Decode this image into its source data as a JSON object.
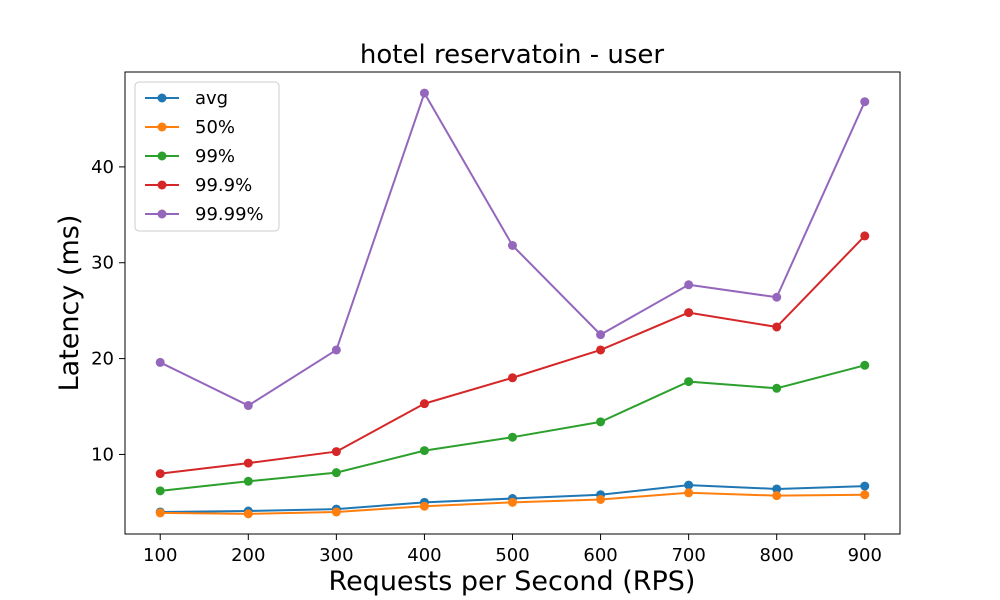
{
  "chart_data": {
    "type": "line",
    "title": "hotel reservatoin - user",
    "xlabel": "Requests per Second (RPS)",
    "ylabel": "Latency (ms)",
    "x": [
      100,
      200,
      300,
      400,
      500,
      600,
      700,
      800,
      900
    ],
    "xticks": [
      "100",
      "200",
      "300",
      "400",
      "500",
      "600",
      "700",
      "800",
      "900"
    ],
    "yticks": [
      10,
      20,
      30,
      40
    ],
    "xlim": [
      60,
      940
    ],
    "ylim": [
      1.7,
      49.9
    ],
    "grid": false,
    "legend_position": "upper-left",
    "series": [
      {
        "name": "avg",
        "color": "#1f77b4",
        "values": [
          4.0,
          4.1,
          4.3,
          5.0,
          5.4,
          5.8,
          6.8,
          6.4,
          6.7
        ]
      },
      {
        "name": "50%",
        "color": "#ff7f0e",
        "values": [
          3.9,
          3.8,
          4.0,
          4.6,
          5.0,
          5.3,
          6.0,
          5.7,
          5.8
        ]
      },
      {
        "name": "99%",
        "color": "#2ca02c",
        "values": [
          6.2,
          7.2,
          8.1,
          10.4,
          11.8,
          13.4,
          17.6,
          16.9,
          19.3
        ]
      },
      {
        "name": "99.9%",
        "color": "#d62728",
        "values": [
          8.0,
          9.1,
          10.3,
          15.3,
          18.0,
          20.9,
          24.8,
          23.3,
          32.8
        ]
      },
      {
        "name": "99.99%",
        "color": "#9467bd",
        "values": [
          19.6,
          15.1,
          20.9,
          47.7,
          31.8,
          22.5,
          27.7,
          26.4,
          46.8
        ]
      }
    ]
  }
}
